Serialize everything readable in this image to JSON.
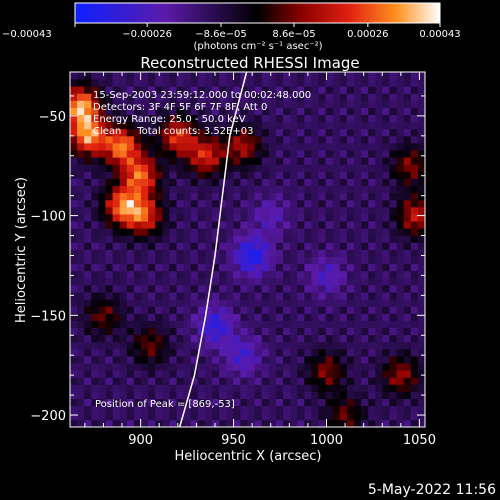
{
  "chart_data": {
    "type": "heatmap",
    "title": "Reconstructed RHESSI Image",
    "xlabel": "Heliocentric X (arcsec)",
    "ylabel": "Heliocentric Y (arcsec)",
    "xlim": [
      862,
      1053
    ],
    "ylim": [
      -206,
      -28
    ],
    "x_ticks": [
      900,
      950,
      1000,
      1050
    ],
    "x_tick_labels": [
      "900",
      "950",
      "1000",
      "1050"
    ],
    "y_ticks": [
      -50,
      -100,
      -150,
      -200
    ],
    "y_tick_labels": [
      "−50",
      "−100",
      "−150",
      "−200"
    ],
    "colorbar": {
      "range": [
        -0.00043,
        0.00043
      ],
      "tick_values": [
        -0.00043,
        -0.00026,
        -8.6e-05,
        8.6e-05,
        0.00026,
        0.00043
      ],
      "tick_labels": [
        "−0.00043",
        "−0.00026",
        "−8.6e−05",
        "8.6e−05",
        "0.00026",
        "0.00043"
      ],
      "units_label": "(photons cm⁻² s⁻¹ asec⁻²)"
    },
    "annotations": [
      "15-Sep-2003 23:59:12.000 to 00:02:48.000",
      "Detectors: 3F 4F 5F 6F 7F 8F, Att 0",
      "Energy Range: 25.0 - 50.0 keV",
      "Clean     Total counts: 3.52E+03"
    ],
    "peak_label": "Position of Peak = [869,-53]",
    "peak_position": [
      869,
      -53
    ],
    "limb_points": [
      [
        957,
        -28
      ],
      [
        948,
        -60
      ],
      [
        944,
        -90
      ],
      [
        940,
        -120
      ],
      [
        935,
        -150
      ],
      [
        929,
        -180
      ],
      [
        921,
        -206
      ]
    ],
    "bright_sources": [
      {
        "x": 868,
        "y": -45,
        "value": 0.00043
      },
      {
        "x": 872,
        "y": -60,
        "value": 0.0004
      },
      {
        "x": 890,
        "y": -65,
        "value": 0.00038
      },
      {
        "x": 900,
        "y": -80,
        "value": 0.00035
      },
      {
        "x": 890,
        "y": -95,
        "value": 0.00036
      },
      {
        "x": 902,
        "y": -100,
        "value": 0.0003
      },
      {
        "x": 920,
        "y": -60,
        "value": 0.0003
      },
      {
        "x": 935,
        "y": -70,
        "value": 0.00028
      },
      {
        "x": 955,
        "y": -65,
        "value": 0.00022
      },
      {
        "x": 1048,
        "y": -100,
        "value": 0.00025
      },
      {
        "x": 1045,
        "y": -75,
        "value": 0.00018
      },
      {
        "x": 1000,
        "y": -178,
        "value": 0.00018
      },
      {
        "x": 1040,
        "y": -180,
        "value": 0.0002
      },
      {
        "x": 880,
        "y": -150,
        "value": 0.00015
      },
      {
        "x": 905,
        "y": -165,
        "value": 0.00015
      },
      {
        "x": 1010,
        "y": -200,
        "value": 0.00015
      }
    ],
    "dark_regions": [
      {
        "x": 960,
        "y": -120,
        "value": -0.0003
      },
      {
        "x": 940,
        "y": -155,
        "value": -0.00025
      },
      {
        "x": 955,
        "y": -170,
        "value": -0.0002
      },
      {
        "x": 1000,
        "y": -130,
        "value": -0.00018
      },
      {
        "x": 970,
        "y": -100,
        "value": -0.00015
      }
    ]
  },
  "footer": {
    "date": "5-May-2022 11:56"
  }
}
